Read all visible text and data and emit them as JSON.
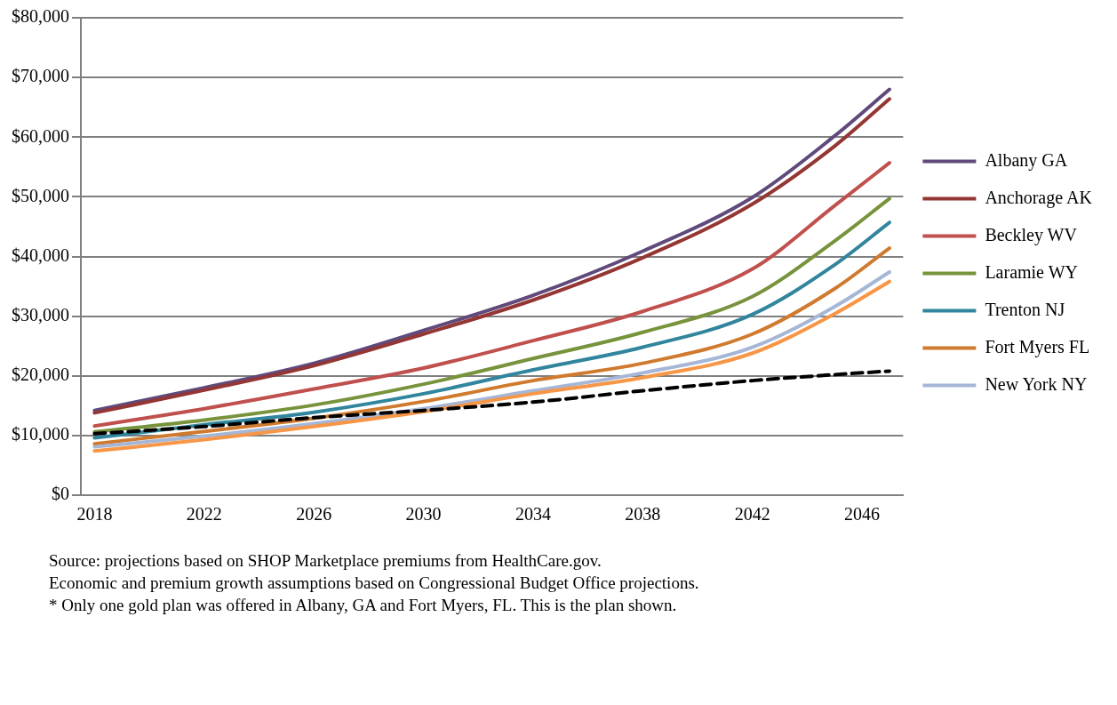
{
  "chart_data": {
    "type": "line",
    "marker": "none",
    "legend": "right",
    "grid": "y",
    "xlim": [
      2017.5,
      2047.5
    ],
    "xticks": [
      2018,
      2022,
      2026,
      2030,
      2034,
      2038,
      2042,
      2046
    ],
    "ylim": [
      0,
      80000
    ],
    "yticks": [
      {
        "value": 0,
        "label": "$0"
      },
      {
        "value": 10000,
        "label": "$10,000"
      },
      {
        "value": 20000,
        "label": "$20,000"
      },
      {
        "value": 30000,
        "label": "$30,000"
      },
      {
        "value": 40000,
        "label": "$40,000"
      },
      {
        "value": 50000,
        "label": "$50,000"
      },
      {
        "value": 60000,
        "label": "$60,000"
      },
      {
        "value": 70000,
        "label": "$70,000"
      },
      {
        "value": 80000,
        "label": "$80,000"
      }
    ],
    "x": [
      2018,
      2022,
      2026,
      2030,
      2034,
      2038,
      2042,
      2045,
      2047
    ],
    "series": [
      {
        "name": "Albany GA",
        "color": "#604a7b",
        "values": [
          14200,
          18000,
          22100,
          27600,
          33500,
          40900,
          49900,
          60200,
          68000
        ]
      },
      {
        "name": "Anchorage AK",
        "color": "#943634",
        "values": [
          13800,
          17600,
          21700,
          27000,
          32700,
          39800,
          48800,
          58500,
          66400
        ]
      },
      {
        "name": "Beckley WV",
        "color": "#c0504d",
        "values": [
          11600,
          14500,
          17800,
          21300,
          25900,
          30800,
          37900,
          48500,
          55700
        ]
      },
      {
        "name": "Laramie WY",
        "color": "#77933c",
        "values": [
          10600,
          12600,
          15100,
          18600,
          22900,
          27300,
          33300,
          42600,
          49700
        ]
      },
      {
        "name": "Trenton NJ",
        "color": "#31859c",
        "values": [
          9600,
          11800,
          13900,
          17000,
          21000,
          24800,
          30300,
          38600,
          45700
        ]
      },
      {
        "name": "Fort Myers FL",
        "color": "#d07a2e",
        "values": [
          8600,
          10700,
          12900,
          15700,
          19200,
          22100,
          27000,
          34600,
          41400
        ]
      },
      {
        "name": "New York NY",
        "color": "#a5b6d6",
        "values": [
          8100,
          9900,
          12000,
          14500,
          17500,
          20500,
          24800,
          31600,
          37400
        ]
      },
      {
        "color": "#f79646",
        "values": [
          7400,
          9300,
          11500,
          14000,
          17000,
          19700,
          23800,
          30400,
          35800
        ]
      },
      {
        "color": "#000000",
        "line_style": "dashed",
        "values": [
          10300,
          11500,
          13000,
          14200,
          15600,
          17500,
          19200,
          20200,
          20800
        ]
      }
    ],
    "annotations": [
      "Source: projections based on SHOP Marketplace premiums from HealthCare.gov.",
      "Economic and premium growth assumptions based on Congressional Budget Office projections.",
      "* Only one gold plan was offered in Albany, GA and Fort Myers, FL. This is the plan shown."
    ]
  }
}
